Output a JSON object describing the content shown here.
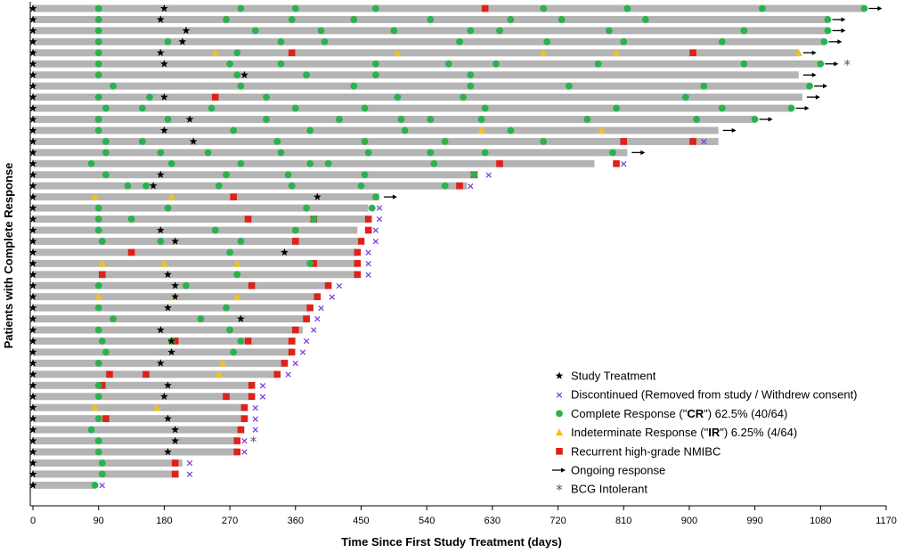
{
  "chart_data": {
    "type": "swimmer",
    "xlabel": "Time Since First Study Treatment (days)",
    "ylabel": "Patients with Complete Response",
    "xlim": [
      0,
      1170
    ],
    "xticks": [
      0,
      90,
      180,
      270,
      360,
      450,
      540,
      630,
      720,
      810,
      900,
      990,
      1080,
      1170
    ],
    "legend_position": "bottom-right",
    "legend": [
      {
        "key": "study",
        "label": "Study Treatment"
      },
      {
        "key": "disc",
        "label": "Discontinued (Removed from study / Withdrew consent)"
      },
      {
        "key": "cr",
        "label_prefix": "Complete Response (\"",
        "label_bold": "CR",
        "label_suffix": "\") 62.5% (40/64)"
      },
      {
        "key": "ir",
        "label_prefix": "Indeterminate Response (\"",
        "label_bold": "IR",
        "label_suffix": "\") 6.25% (4/64)"
      },
      {
        "key": "rec",
        "label": "Recurrent high-grade NMIBC"
      },
      {
        "key": "ongoing",
        "label": "Ongoing response"
      },
      {
        "key": "bcg",
        "label": "BCG Intolerant"
      }
    ],
    "colors": {
      "bar": "#b4b4b4",
      "cr": "#2ab24c",
      "ir": "#f2c316",
      "rec": "#e0201b",
      "disc": "#7b3fe0",
      "star": "#000000",
      "arrow": "#000000"
    },
    "patients": [
      {
        "end": 1140,
        "study": [
          0,
          180
        ],
        "cr": [
          90,
          285,
          360,
          470,
          700,
          815,
          1000,
          1140
        ],
        "rec": [
          620
        ],
        "ongoing": true
      },
      {
        "end": 1090,
        "study": [
          0,
          175
        ],
        "cr": [
          90,
          265,
          355,
          440,
          545,
          655,
          725,
          840,
          1090
        ],
        "ongoing": true
      },
      {
        "end": 1090,
        "study": [
          0,
          210
        ],
        "cr": [
          90,
          305,
          395,
          495,
          600,
          640,
          790,
          975,
          1090
        ],
        "ongoing": true
      },
      {
        "end": 1085,
        "study": [
          0,
          205
        ],
        "cr": [
          90,
          185,
          340,
          400,
          585,
          705,
          810,
          945,
          1085
        ],
        "ongoing": true
      },
      {
        "end": 1050,
        "study": [
          0,
          175
        ],
        "cr": [
          90,
          280
        ],
        "ir": [
          250,
          500,
          700,
          800,
          1050
        ],
        "rec": [
          355,
          905
        ],
        "ongoing": true
      },
      {
        "end": 1080,
        "study": [
          0,
          180
        ],
        "cr": [
          90,
          270,
          340,
          470,
          570,
          635,
          775,
          975,
          1080
        ],
        "ongoing": true,
        "bcg": true
      },
      {
        "end": 1050,
        "study": [
          0,
          290
        ],
        "cr": [
          90,
          280,
          375,
          470,
          600
        ],
        "ongoing": true
      },
      {
        "end": 1065,
        "study": [
          0
        ],
        "cr": [
          110,
          285,
          440,
          600,
          735,
          920,
          1065
        ],
        "ongoing": true
      },
      {
        "end": 1055,
        "study": [
          0,
          180
        ],
        "cr": [
          90,
          160,
          320,
          500,
          590,
          895
        ],
        "rec": [
          250
        ],
        "ongoing": true
      },
      {
        "end": 1040,
        "study": [
          0
        ],
        "cr": [
          100,
          150,
          245,
          360,
          455,
          620,
          800,
          945,
          1040
        ],
        "ongoing": true
      },
      {
        "end": 990,
        "study": [
          0,
          215
        ],
        "cr": [
          90,
          185,
          320,
          420,
          505,
          545,
          615,
          760,
          910,
          990
        ],
        "ongoing": true
      },
      {
        "end": 940,
        "study": [
          0,
          180
        ],
        "cr": [
          90,
          275,
          380,
          510,
          655
        ],
        "ir": [
          615,
          780
        ],
        "ongoing": true
      },
      {
        "end": 940,
        "study": [
          0,
          220
        ],
        "cr": [
          100,
          150,
          335,
          455,
          565,
          700
        ],
        "rec": [
          810,
          905
        ],
        "disc": 920
      },
      {
        "end": 815,
        "study": [
          0
        ],
        "cr": [
          100,
          175,
          240,
          340,
          460,
          545,
          620,
          795
        ],
        "ongoing": true
      },
      {
        "end": 770,
        "study": [
          0
        ],
        "cr": [
          80,
          190,
          285,
          380,
          405,
          550
        ],
        "rec": [
          640,
          800
        ],
        "disc": 810
      },
      {
        "end": 610,
        "study": [
          0,
          175
        ],
        "cr": [
          100,
          265,
          350,
          455,
          605
        ],
        "rec": [
          605
        ],
        "disc": 625
      },
      {
        "end": 595,
        "study": [
          0,
          165
        ],
        "cr": [
          130,
          155,
          255,
          355,
          450,
          565
        ],
        "rec": [
          585
        ],
        "disc": 600
      },
      {
        "end": 475,
        "study": [
          0,
          390
        ],
        "cr": [
          470
        ],
        "ir": [
          85,
          190
        ],
        "rec": [
          275
        ],
        "ongoing": true
      },
      {
        "end": 460,
        "study": [
          0
        ],
        "cr": [
          90,
          185,
          375,
          465
        ],
        "disc": 475
      },
      {
        "end": 460,
        "study": [
          0
        ],
        "cr": [
          90,
          135,
          385
        ],
        "rec": [
          295,
          385,
          460
        ],
        "disc": 475
      },
      {
        "end": 445,
        "study": [
          0,
          175
        ],
        "cr": [
          90,
          250,
          360
        ],
        "rec": [
          460
        ],
        "disc": 470
      },
      {
        "end": 445,
        "study": [
          0,
          195
        ],
        "cr": [
          95,
          175,
          285
        ],
        "rec": [
          360,
          450
        ],
        "disc": 470
      },
      {
        "end": 445,
        "study": [
          0,
          345
        ],
        "cr": [
          270
        ],
        "rec": [
          135,
          445
        ],
        "disc": 460
      },
      {
        "end": 445,
        "study": [
          0
        ],
        "cr": [
          380
        ],
        "ir": [
          95,
          180,
          280
        ],
        "rec": [
          385,
          445
        ],
        "disc": 460
      },
      {
        "end": 445,
        "study": [
          0,
          185
        ],
        "cr": [
          280
        ],
        "rec": [
          95,
          445
        ],
        "disc": 460
      },
      {
        "end": 405,
        "study": [
          0,
          195
        ],
        "cr": [
          90,
          210
        ],
        "rec": [
          300,
          405
        ],
        "disc": 420
      },
      {
        "end": 390,
        "study": [
          0,
          195
        ],
        "ir": [
          90,
          195,
          280
        ],
        "rec": [
          390
        ],
        "disc": 410
      },
      {
        "end": 380,
        "study": [
          0,
          185
        ],
        "cr": [
          90,
          265
        ],
        "rec": [
          380
        ],
        "disc": 395
      },
      {
        "end": 380,
        "study": [
          0,
          285
        ],
        "cr": [
          110,
          230
        ],
        "rec": [
          375
        ],
        "disc": 390
      },
      {
        "end": 370,
        "study": [
          0,
          175
        ],
        "cr": [
          90,
          270
        ],
        "rec": [
          360
        ],
        "disc": 385
      },
      {
        "end": 360,
        "study": [
          0,
          190
        ],
        "cr": [
          95,
          190,
          285
        ],
        "rec": [
          195,
          295,
          355
        ],
        "disc": 375
      },
      {
        "end": 355,
        "study": [
          0,
          190
        ],
        "cr": [
          100,
          275
        ],
        "rec": [
          355
        ],
        "disc": 370
      },
      {
        "end": 345,
        "study": [
          0,
          175
        ],
        "cr": [
          90
        ],
        "ir": [
          260
        ],
        "rec": [
          345
        ],
        "disc": 360
      },
      {
        "end": 335,
        "study": [
          0
        ],
        "ir": [
          255
        ],
        "rec": [
          105,
          155,
          335
        ],
        "disc": 350
      },
      {
        "end": 300,
        "study": [
          0,
          185
        ],
        "cr": [
          90
        ],
        "rec": [
          95,
          300
        ],
        "disc": 315
      },
      {
        "end": 300,
        "study": [
          0,
          180
        ],
        "cr": [
          90
        ],
        "rec": [
          265,
          300
        ],
        "disc": 315
      },
      {
        "end": 290,
        "study": [
          0
        ],
        "ir": [
          85,
          170
        ],
        "rec": [
          290
        ],
        "disc": 305
      },
      {
        "end": 290,
        "study": [
          0,
          185
        ],
        "cr": [
          90
        ],
        "rec": [
          100,
          290
        ],
        "disc": 305
      },
      {
        "end": 290,
        "study": [
          0,
          195
        ],
        "cr": [
          80
        ],
        "rec": [
          285
        ],
        "disc": 305
      },
      {
        "end": 280,
        "study": [
          0,
          195
        ],
        "cr": [
          90
        ],
        "rec": [
          280
        ],
        "disc": 290,
        "bcg": true
      },
      {
        "end": 280,
        "study": [
          0,
          185
        ],
        "cr": [
          90
        ],
        "rec": [
          280
        ],
        "disc": 290
      },
      {
        "end": 205,
        "study": [
          0
        ],
        "cr": [
          95
        ],
        "rec": [
          195
        ],
        "disc": 215
      },
      {
        "end": 200,
        "study": [
          0
        ],
        "cr": [
          95
        ],
        "rec": [
          195
        ],
        "disc": 215
      },
      {
        "end": 85,
        "study": [
          0
        ],
        "cr": [
          85
        ],
        "disc": 95
      }
    ]
  }
}
